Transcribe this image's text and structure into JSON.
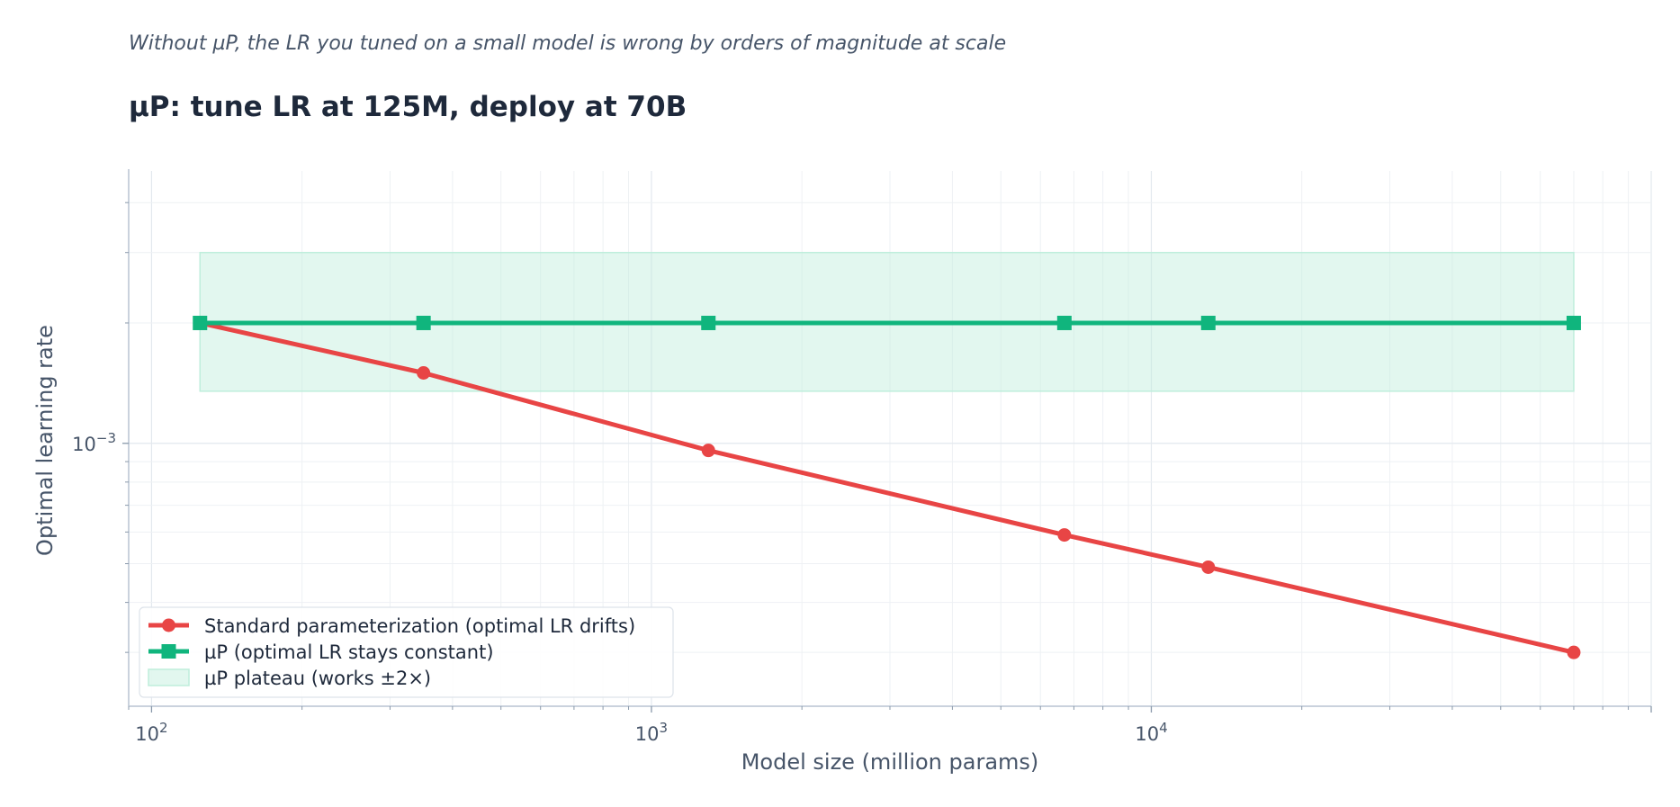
{
  "header": {
    "subtitle": "Without µP, the LR you tuned on a small model is wrong by orders of magnitude at scale",
    "title": "µP: tune LR at 125M, deploy at 70B"
  },
  "chart_data": {
    "type": "line",
    "title": "µP: tune LR at 125M, deploy at 70B",
    "subtitle": "Without µP, the LR you tuned on a small model is wrong by orders of magnitude at scale",
    "xlabel": "Model size (million params)",
    "ylabel": "Optimal learning rate",
    "xscale": "log",
    "yscale": "log",
    "xlim": [
      90,
      100000
    ],
    "ylim": [
      0.00022,
      0.0048
    ],
    "x_ticks": [
      {
        "value": 100,
        "base": "10",
        "exp": "2"
      },
      {
        "value": 1000,
        "base": "10",
        "exp": "3"
      },
      {
        "value": 10000,
        "base": "10",
        "exp": "4"
      }
    ],
    "y_ticks": [
      {
        "value": 0.001,
        "base": "10",
        "exp": "−3"
      }
    ],
    "grid": true,
    "legend_position": "lower-left",
    "x": [
      125,
      350,
      1300,
      6700,
      13000,
      70000
    ],
    "series": [
      {
        "name": "Standard parameterization (optimal LR drifts)",
        "marker": "circle",
        "color": "#e84545",
        "values": [
          0.002,
          0.0015,
          0.00096,
          0.00059,
          0.00049,
          0.0003
        ]
      },
      {
        "name": "µP (optimal LR stays constant)",
        "marker": "square",
        "color": "#10b57d",
        "values": [
          0.002,
          0.002,
          0.002,
          0.002,
          0.002,
          0.002
        ]
      }
    ],
    "band": {
      "name": "µP plateau (works ±2×)",
      "x_range": [
        125,
        70000
      ],
      "y_range": [
        0.00135,
        0.003
      ],
      "color": "#bfeedc"
    }
  }
}
